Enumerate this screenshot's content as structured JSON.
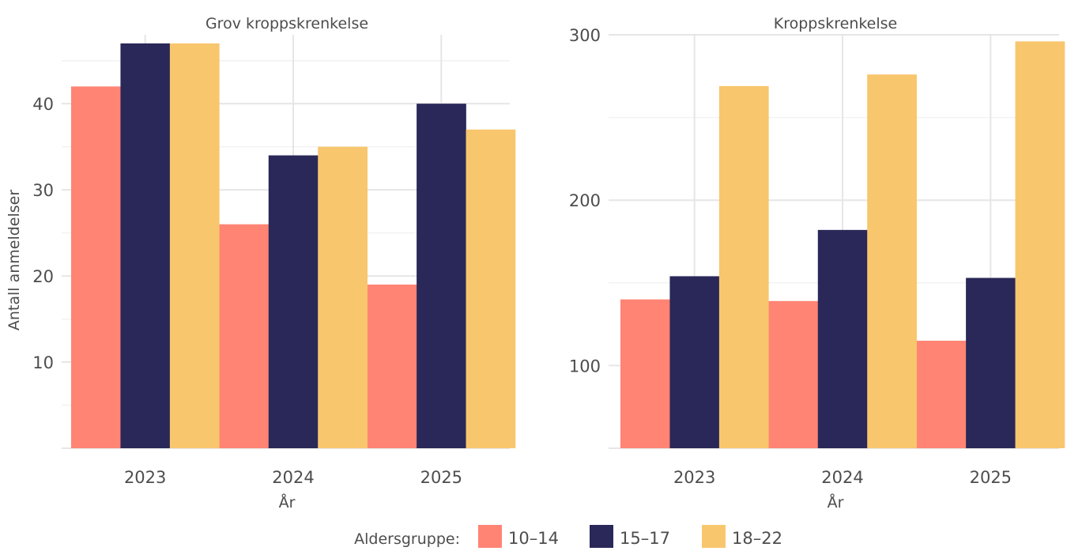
{
  "chart_data": [
    {
      "type": "bar",
      "title": "Grov kroppskrenkelse",
      "xlabel": "År",
      "ylabel": "Antall anmeldelser",
      "categories": [
        "2023",
        "2024",
        "2025"
      ],
      "series": [
        {
          "name": "10–14",
          "values": [
            42,
            26,
            19
          ]
        },
        {
          "name": "15–17",
          "values": [
            47,
            34,
            40
          ]
        },
        {
          "name": "18–22",
          "values": [
            47,
            35,
            37
          ]
        }
      ],
      "ylim": [
        0,
        48
      ],
      "yticks": [
        10,
        20,
        30,
        40
      ],
      "grid": true
    },
    {
      "type": "bar",
      "title": "Kroppskrenkelse",
      "xlabel": "År",
      "ylabel": "",
      "categories": [
        "2023",
        "2024",
        "2025"
      ],
      "series": [
        {
          "name": "10–14",
          "values": [
            140,
            139,
            115
          ]
        },
        {
          "name": "15–17",
          "values": [
            154,
            182,
            153
          ]
        },
        {
          "name": "18–22",
          "values": [
            269,
            276,
            296
          ]
        }
      ],
      "ylim": [
        50,
        300
      ],
      "yticks": [
        100,
        200,
        300
      ],
      "grid": true
    }
  ],
  "legend": {
    "title": "Aldersgruppe:",
    "placement": "bottom",
    "items": [
      {
        "label": "10–14",
        "color": "#FF8474"
      },
      {
        "label": "15–17",
        "color": "#2A2858"
      },
      {
        "label": "18–22",
        "color": "#F8C66D"
      }
    ]
  }
}
